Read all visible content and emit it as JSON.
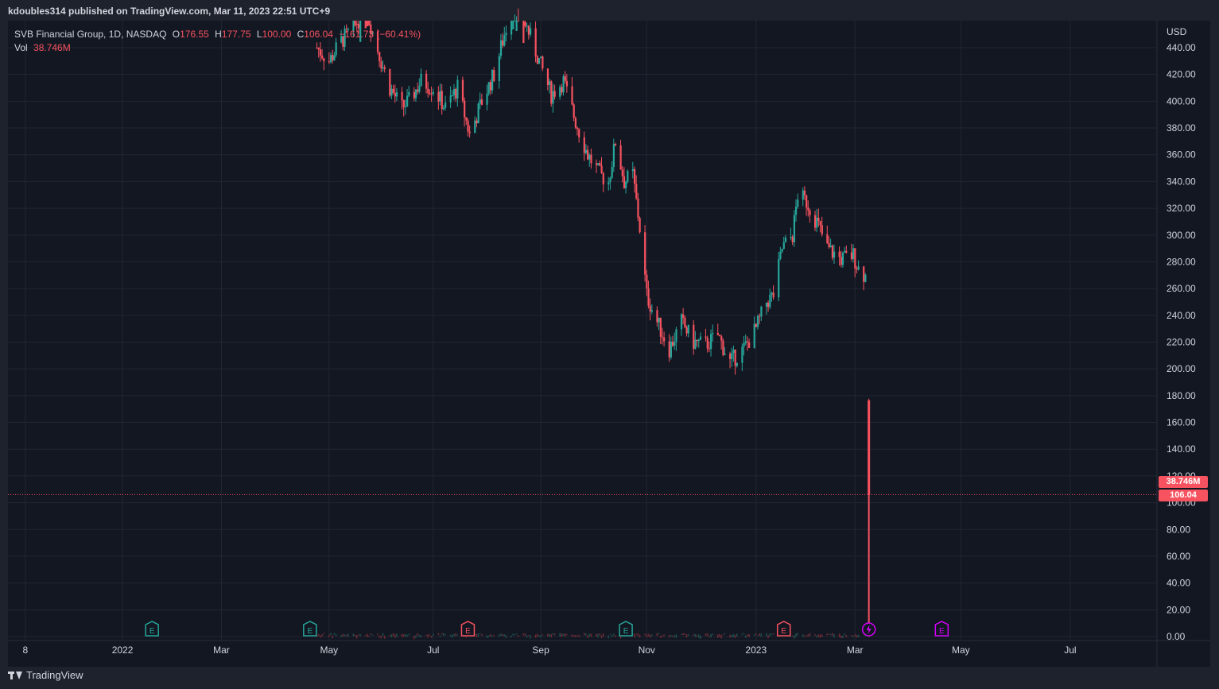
{
  "header": {
    "attribution": "kdoubles314 published on TradingView.com, Mar 11, 2023 22:51 UTC+9"
  },
  "legend": {
    "symbol": "SVB Financial Group, 1D, NASDAQ",
    "o_label": "O",
    "o_value": "176.55",
    "h_label": "H",
    "h_value": "177.75",
    "l_label": "L",
    "l_value": "100.00",
    "c_label": "C",
    "c_value": "106.04",
    "change": "−161.73 (−60.41%)",
    "vol_label": "Vol",
    "vol_value": "38.746M"
  },
  "price_axis": {
    "currency": "USD",
    "last_price": "106.04",
    "last_volume": "38.746M"
  },
  "footer": {
    "brand": "TradingView"
  },
  "colors": {
    "up": "#26a69a",
    "down": "#f7525f",
    "grid": "#232632",
    "background": "#131722",
    "text": "#d1d4dc",
    "event": "#d500f9"
  },
  "icons": {
    "earnings": "E",
    "dividend_split": "lightning-icon"
  },
  "chart_data": {
    "type": "candlestick",
    "title": "SVB Financial Group, 1D, NASDAQ",
    "ylabel": "USD",
    "ylim": [
      0,
      450
    ],
    "y_ticks": [
      "0.00",
      "20.00",
      "40.00",
      "60.00",
      "80.00",
      "100.00",
      "120.00",
      "140.00",
      "160.00",
      "180.00",
      "200.00",
      "220.00",
      "240.00",
      "260.00",
      "280.00",
      "300.00",
      "320.00",
      "340.00",
      "360.00",
      "380.00",
      "400.00",
      "420.00",
      "440.00"
    ],
    "x_ticks": [
      {
        "label": "8",
        "date": "2021-11-08"
      },
      {
        "label": "2022",
        "date": "2022-01-03"
      },
      {
        "label": "Mar",
        "date": "2022-03-01"
      },
      {
        "label": "May",
        "date": "2022-05-02"
      },
      {
        "label": "Jul",
        "date": "2022-07-01"
      },
      {
        "label": "Sep",
        "date": "2022-09-01"
      },
      {
        "label": "Nov",
        "date": "2022-11-01"
      },
      {
        "label": "2023",
        "date": "2023-01-03"
      },
      {
        "label": "Mar",
        "date": "2023-03-01"
      },
      {
        "label": "May",
        "date": "2023-05-01"
      },
      {
        "label": "Jul",
        "date": "2023-07-03"
      }
    ],
    "x_range": [
      "2021-10-29",
      "2023-08-22"
    ],
    "grid": true,
    "last_price_line": 106.04,
    "price_path": [
      [
        "2022-04-25",
        440
      ],
      [
        "2022-05-02",
        430
      ],
      [
        "2022-05-09",
        445
      ],
      [
        "2022-05-16",
        455
      ],
      [
        "2022-05-23",
        470
      ],
      [
        "2022-06-01",
        430
      ],
      [
        "2022-06-06",
        410
      ],
      [
        "2022-06-13",
        395
      ],
      [
        "2022-06-17",
        400
      ],
      [
        "2022-06-24",
        415
      ],
      [
        "2022-07-01",
        410
      ],
      [
        "2022-07-08",
        395
      ],
      [
        "2022-07-15",
        410
      ],
      [
        "2022-07-22",
        375
      ],
      [
        "2022-07-29",
        400
      ],
      [
        "2022-08-05",
        420
      ],
      [
        "2022-08-12",
        455
      ],
      [
        "2022-08-17",
        475
      ],
      [
        "2022-08-24",
        455
      ],
      [
        "2022-08-31",
        430
      ],
      [
        "2022-09-07",
        405
      ],
      [
        "2022-09-14",
        415
      ],
      [
        "2022-09-21",
        385
      ],
      [
        "2022-09-28",
        360
      ],
      [
        "2022-10-05",
        345
      ],
      [
        "2022-10-10",
        340
      ],
      [
        "2022-10-14",
        370
      ],
      [
        "2022-10-19",
        340
      ],
      [
        "2022-10-24",
        345
      ],
      [
        "2022-10-28",
        305
      ],
      [
        "2022-11-01",
        255
      ],
      [
        "2022-11-07",
        235
      ],
      [
        "2022-11-14",
        215
      ],
      [
        "2022-11-21",
        235
      ],
      [
        "2022-11-28",
        220
      ],
      [
        "2022-12-05",
        218
      ],
      [
        "2022-12-12",
        225
      ],
      [
        "2022-12-19",
        205
      ],
      [
        "2022-12-27",
        215
      ],
      [
        "2023-01-03",
        230
      ],
      [
        "2023-01-09",
        250
      ],
      [
        "2023-01-13",
        255
      ],
      [
        "2023-01-18",
        290
      ],
      [
        "2023-01-24",
        300
      ],
      [
        "2023-01-27",
        330
      ],
      [
        "2023-02-01",
        325
      ],
      [
        "2023-02-07",
        310
      ],
      [
        "2023-02-13",
        290
      ],
      [
        "2023-02-21",
        282
      ],
      [
        "2023-02-28",
        285
      ],
      [
        "2023-03-03",
        275
      ],
      [
        "2023-03-08",
        268
      ]
    ],
    "final_candle": {
      "date": "2023-03-09",
      "open": 176.55,
      "high": 177.75,
      "low": 100.0,
      "close": 106.04
    },
    "volume_last": 38.746,
    "event_markers": [
      {
        "date": "2022-01-20",
        "type": "earnings",
        "color": "#26a69a"
      },
      {
        "date": "2022-04-21",
        "type": "earnings",
        "color": "#26a69a"
      },
      {
        "date": "2022-07-21",
        "type": "earnings",
        "color": "#f7525f"
      },
      {
        "date": "2022-10-20",
        "type": "earnings",
        "color": "#26a69a"
      },
      {
        "date": "2023-01-19",
        "type": "earnings",
        "color": "#f7525f"
      },
      {
        "date": "2023-03-09",
        "type": "split",
        "color": "#d500f9"
      },
      {
        "date": "2023-04-20",
        "type": "earnings",
        "color": "#d500f9"
      }
    ]
  }
}
